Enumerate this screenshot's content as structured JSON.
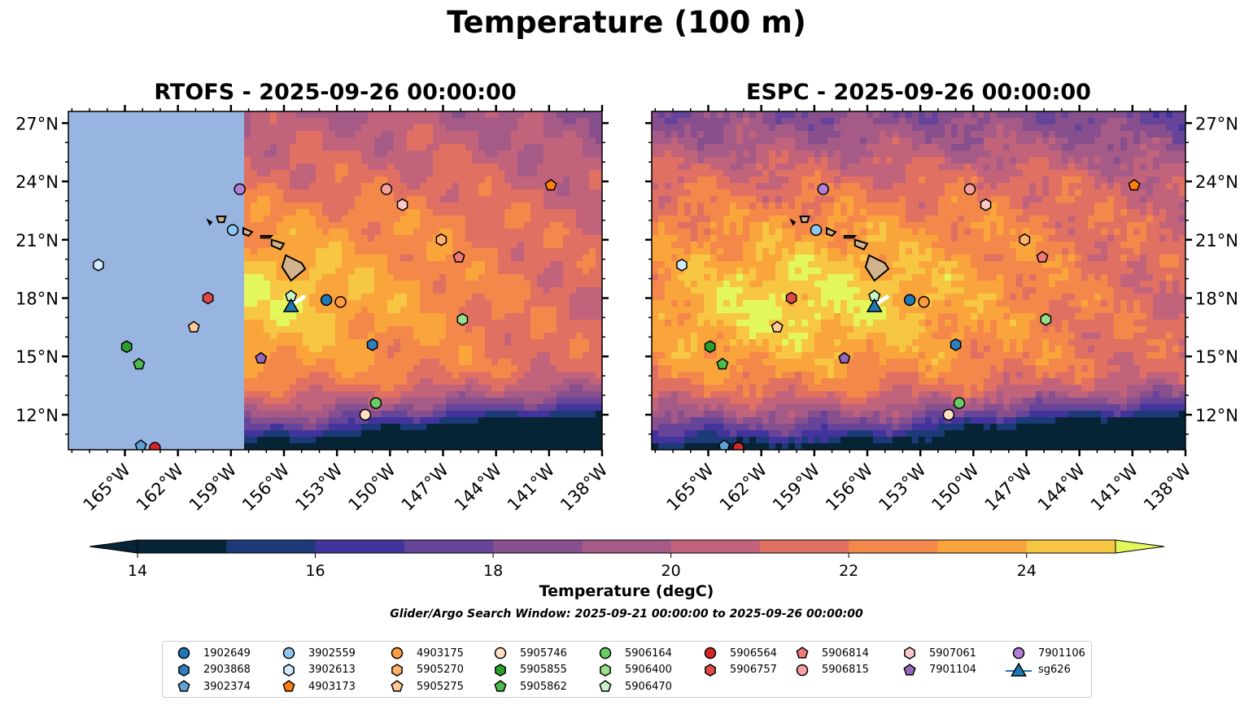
{
  "figure": {
    "suptitle": "Temperature (100 m)",
    "colorbar_label": "Temperature (degC)",
    "search_window": "Glider/Argo Search Window: 2025-09-21 00:00:00 to 2025-09-26 00:00:00"
  },
  "chart_data": {
    "type": "heatmap",
    "title": "Temperature (100 m)",
    "panels": [
      {
        "id": "rtofs",
        "title": "RTOFS - 2025-09-26 00:00:00",
        "model": "RTOFS",
        "lat_axis_side": "left",
        "no_data_west_of_lon": -158.2
      },
      {
        "id": "espc",
        "title": "ESPC - 2025-09-26 00:00:00",
        "model": "ESPC",
        "lat_axis_side": "right"
      }
    ],
    "xlabel": "Longitude",
    "ylabel": "Latitude",
    "xlim": [
      -168.2,
      -138
    ],
    "ylim": [
      10.2,
      27.6
    ],
    "x_ticks": [
      -165,
      -162,
      -159,
      -156,
      -153,
      -150,
      -147,
      -144,
      -141,
      -138
    ],
    "x_tick_labels": [
      "165°W",
      "162°W",
      "159°W",
      "156°W",
      "153°W",
      "150°W",
      "147°W",
      "144°W",
      "141°W",
      "138°W"
    ],
    "y_ticks": [
      12,
      15,
      18,
      21,
      24,
      27
    ],
    "y_tick_labels": [
      "12°N",
      "15°N",
      "18°N",
      "21°N",
      "24°N",
      "27°N"
    ],
    "colorbar": {
      "label": "Temperature (degC)",
      "min": 14,
      "max": 25,
      "step": 1,
      "extend": "both",
      "ticks": [
        14,
        16,
        18,
        20,
        22,
        24
      ],
      "colors": [
        "#072436",
        "#1c3a78",
        "#43349d",
        "#66449a",
        "#874f8d",
        "#a65b87",
        "#c2637c",
        "#e07062",
        "#f4884a",
        "#faa43c",
        "#f7c744",
        "#e3f75c"
      ],
      "under_color": "#072436",
      "over_color": "#e3f75c"
    },
    "floats": [
      {
        "id": "1902649",
        "marker": "circle",
        "color": "#1f77b4",
        "lon": -153.6,
        "lat": 17.9
      },
      {
        "id": "2903868",
        "marker": "hexagon",
        "color": "#2f7fbf",
        "lon": -151.0,
        "lat": 15.6
      },
      {
        "id": "3902374",
        "marker": "pentagon",
        "color": "#5fa3d9",
        "lon": -164.1,
        "lat": 10.4
      },
      {
        "id": "3902559",
        "marker": "circle",
        "color": "#8ec7ef",
        "lon": -158.9,
        "lat": 21.5
      },
      {
        "id": "3902613",
        "marker": "hexagon",
        "color": "#cfe8fb",
        "lon": -166.5,
        "lat": 19.7
      },
      {
        "id": "4903173",
        "marker": "pentagon",
        "color": "#ff7f0e",
        "lon": -140.9,
        "lat": 23.8
      },
      {
        "id": "4903175",
        "marker": "circle",
        "color": "#ff9a3e",
        "lon": -152.8,
        "lat": 17.8
      },
      {
        "id": "5905270",
        "marker": "hexagon",
        "color": "#ffb06a",
        "lon": -147.1,
        "lat": 21.0
      },
      {
        "id": "5905275",
        "marker": "pentagon",
        "color": "#ffc896",
        "lon": -161.1,
        "lat": 16.5
      },
      {
        "id": "5905746",
        "marker": "circle",
        "color": "#ffe0c4",
        "lon": -151.4,
        "lat": 12.0
      },
      {
        "id": "5905855",
        "marker": "hexagon",
        "color": "#2ca02c",
        "lon": -164.9,
        "lat": 15.5
      },
      {
        "id": "5905862",
        "marker": "pentagon",
        "color": "#4cba4c",
        "lon": -164.2,
        "lat": 14.6
      },
      {
        "id": "5906164",
        "marker": "circle",
        "color": "#6acc64",
        "lon": -150.8,
        "lat": 12.6
      },
      {
        "id": "5906400",
        "marker": "hexagon",
        "color": "#98df8a",
        "lon": -145.9,
        "lat": 16.9
      },
      {
        "id": "5906470",
        "marker": "pentagon",
        "color": "#c8f5c8",
        "lon": -155.6,
        "lat": 18.1
      },
      {
        "id": "5906564",
        "marker": "circle",
        "color": "#d62728",
        "lon": -163.3,
        "lat": 10.3
      },
      {
        "id": "5906757",
        "marker": "hexagon",
        "color": "#e04a4a",
        "lon": -160.3,
        "lat": 18.0
      },
      {
        "id": "5906814",
        "marker": "pentagon",
        "color": "#f07878",
        "lon": -146.1,
        "lat": 20.1
      },
      {
        "id": "5906815",
        "marker": "circle",
        "color": "#f7a0a0",
        "lon": -150.2,
        "lat": 23.6
      },
      {
        "id": "5907061",
        "marker": "hexagon",
        "color": "#fcc8c8",
        "lon": -149.3,
        "lat": 22.8
      },
      {
        "id": "7901104",
        "marker": "pentagon",
        "color": "#9467bd",
        "lon": -157.3,
        "lat": 14.9
      },
      {
        "id": "7901106",
        "marker": "circle",
        "color": "#b07fd6",
        "lon": -158.5,
        "lat": 23.6
      }
    ],
    "gliders": [
      {
        "id": "sg626",
        "marker": "triangle",
        "color": "#1f77b4",
        "lon": -155.6,
        "lat": 17.6,
        "track": [
          [
            -155.5,
            17.7
          ],
          [
            -154.8,
            18.1
          ]
        ]
      }
    ],
    "land": {
      "name": "Hawaiian Islands",
      "color": "#d2b48c"
    },
    "rtofs_nodata_color": "#98b4e0"
  },
  "legend": {
    "columns": [
      [
        "1902649",
        "2903868",
        "3902374"
      ],
      [
        "3902559",
        "3902613",
        "4903173"
      ],
      [
        "4903175",
        "5905270",
        "5905275"
      ],
      [
        "5905746",
        "5905855",
        "5905862"
      ],
      [
        "5906164",
        "5906400",
        "5906470"
      ],
      [
        "5906564",
        "5906757"
      ],
      [
        "5906814",
        "5906815"
      ],
      [
        "5907061",
        "7901104"
      ],
      [
        "7901106",
        "sg626"
      ]
    ]
  }
}
